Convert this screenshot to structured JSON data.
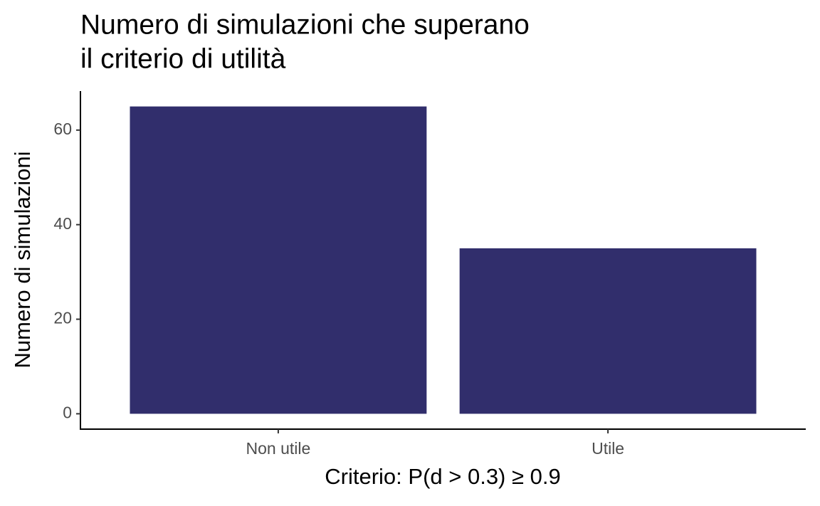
{
  "chart_data": {
    "type": "bar",
    "title": [
      "Numero di simulazioni che superano",
      "il criterio di utilità"
    ],
    "x_label": "Criterio: P(d > 0.3) ≥ 0.9",
    "y_label": "Numero di simulazioni",
    "categories": [
      "Non utile",
      "Utile"
    ],
    "values": [
      65,
      35
    ],
    "color": "#312e6c",
    "ylim": [
      -3.25,
      68.25
    ],
    "yticks": [
      0,
      20,
      40,
      60
    ],
    "grid": false
  }
}
